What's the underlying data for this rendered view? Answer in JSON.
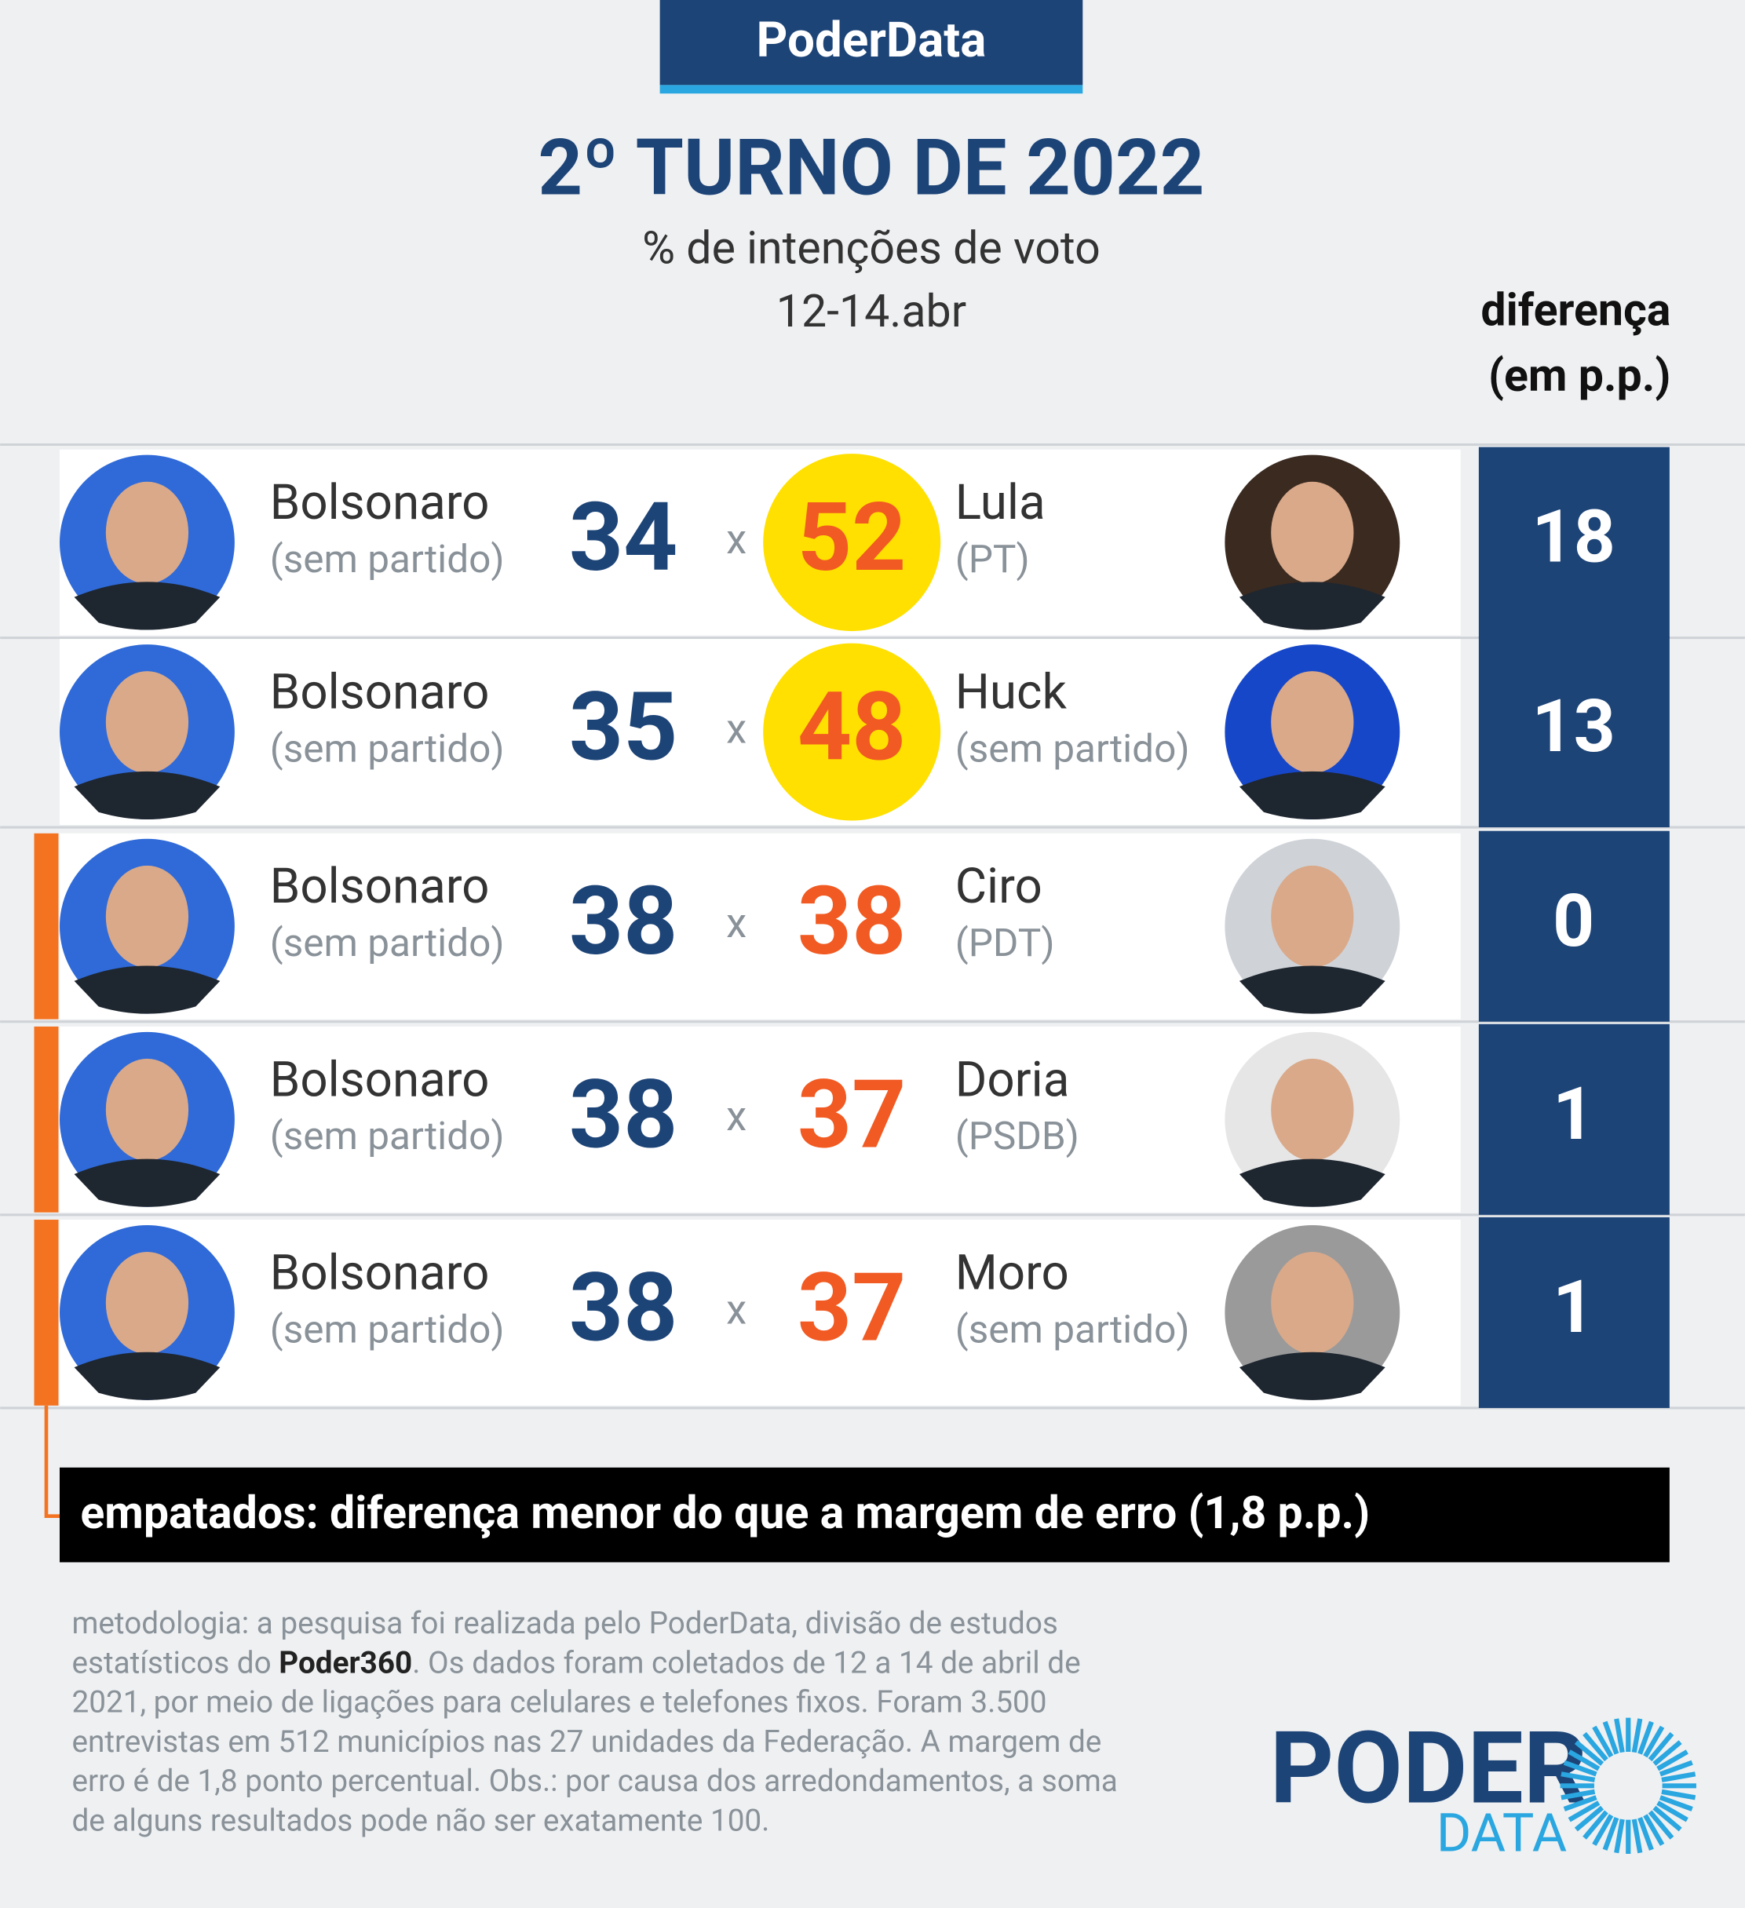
{
  "brand": "PoderData",
  "title": "2º TURNO DE 2022",
  "subtitle": "% de intenções de voto",
  "date": "12-14.abr",
  "diff_header": [
    "diferença",
    "(em p.p.)"
  ],
  "rows": [
    {
      "left_name": "Bolsonaro",
      "left_party": "(sem partido)",
      "left_value": 34,
      "separator": "x",
      "right_name": "Lula",
      "right_party": "(PT)",
      "right_value": 52,
      "highlight": true,
      "diff": 18,
      "tied": false
    },
    {
      "left_name": "Bolsonaro",
      "left_party": "(sem partido)",
      "left_value": 35,
      "separator": "x",
      "right_name": "Huck",
      "right_party": "(sem partido)",
      "right_value": 48,
      "highlight": true,
      "diff": 13,
      "tied": false
    },
    {
      "left_name": "Bolsonaro",
      "left_party": "(sem partido)",
      "left_value": 38,
      "separator": "x",
      "right_name": "Ciro",
      "right_party": "(PDT)",
      "right_value": 38,
      "highlight": false,
      "diff": 0,
      "tied": true
    },
    {
      "left_name": "Bolsonaro",
      "left_party": "(sem partido)",
      "left_value": 38,
      "separator": "x",
      "right_name": "Doria",
      "right_party": "(PSDB)",
      "right_value": 37,
      "highlight": false,
      "diff": 1,
      "tied": true
    },
    {
      "left_name": "Bolsonaro",
      "left_party": "(sem partido)",
      "left_value": 38,
      "separator": "x",
      "right_name": "Moro",
      "right_party": "(sem partido)",
      "right_value": 37,
      "highlight": false,
      "diff": 1,
      "tied": true
    }
  ],
  "note": "empatados: diferença menor do que a margem de erro (1,8 p.p.)",
  "methodology": [
    [
      "metodologia: a pesquisa foi realizada pelo PoderData, divisão de estudos"
    ],
    [
      "estatísticos do ",
      "Poder360",
      ". Os dados foram coletados de 12 a 14 de abril de"
    ],
    [
      "2021, por meio de ligações para celulares e telefones fixos. Foram 3.500"
    ],
    [
      "entrevistas em 512 municípios nas 27 unidades da Federação. A margem de"
    ],
    [
      "erro é de 1,8 ponto percentual. Obs.: por causa dos arredondamentos, a soma"
    ],
    [
      "de alguns resultados pode não ser exatamente 100."
    ]
  ],
  "logo": {
    "top": "PODER",
    "bottom": "DATA"
  }
}
